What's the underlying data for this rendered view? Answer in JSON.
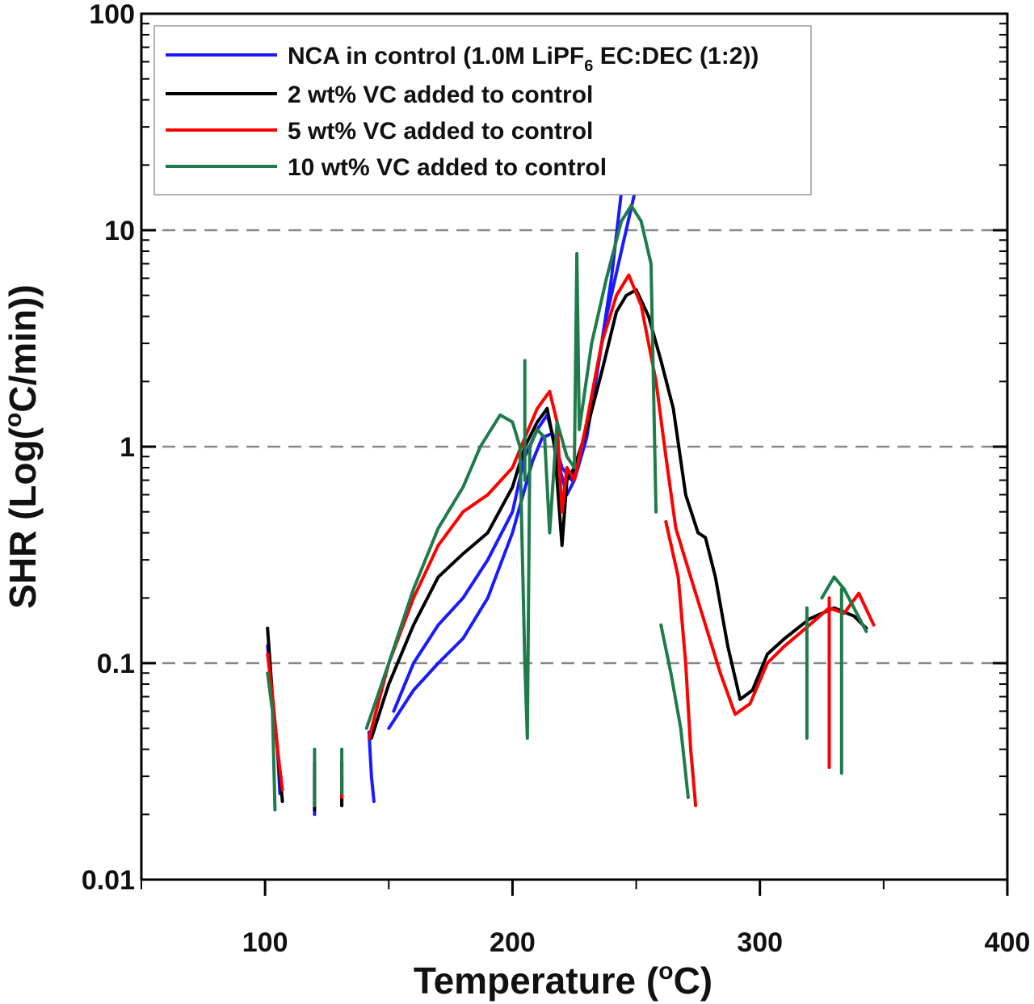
{
  "chart_data": {
    "type": "line",
    "title": "",
    "xlabel": {
      "main": "Temperature (",
      "sup": "o",
      "unit": "C)"
    },
    "ylabel": {
      "main": "SHR (Log(",
      "sup": "o",
      "unit": "C/min))"
    },
    "xlim": [
      50,
      400
    ],
    "ylim": [
      0.01,
      100
    ],
    "yscale": "log",
    "xticks": [
      100,
      200,
      300,
      400
    ],
    "xtick_labels": [
      "100",
      "200",
      "300",
      "400"
    ],
    "yticks": [
      0.01,
      0.1,
      1,
      10,
      100
    ],
    "ytick_labels": [
      "0.01",
      "0.1",
      "1",
      "10",
      "100"
    ],
    "gridlines_y": [
      0.1,
      1,
      10
    ],
    "legend_position": "top-left",
    "series": [
      {
        "name": "NCA in control (1.0M LiPF6 EC:DEC (1:2))",
        "legend_parts": {
          "before": "NCA in control (1.0M LiPF",
          "sub": "6",
          "after": " EC:DEC (1:2))"
        },
        "color": "#1a1aff",
        "segments": [
          [
            [
              101,
              0.12
            ],
            [
              103,
              0.07
            ],
            [
              105,
              0.04
            ],
            [
              106,
              0.025
            ]
          ],
          [
            [
              120,
              0.035
            ],
            [
              120,
              0.02
            ]
          ],
          [
            [
              131,
              0.035
            ],
            [
              131,
              0.022
            ]
          ],
          [
            [
              142,
              0.048
            ],
            [
              143,
              0.03
            ],
            [
              144,
              0.023
            ]
          ],
          [
            [
              150,
              0.05
            ],
            [
              160,
              0.075
            ],
            [
              170,
              0.1
            ],
            [
              180,
              0.13
            ],
            [
              190,
              0.2
            ],
            [
              200,
              0.4
            ],
            [
              208,
              0.85
            ],
            [
              212,
              1.1
            ],
            [
              216,
              1.15
            ],
            [
              219,
              0.8
            ],
            [
              222,
              0.6
            ],
            [
              225,
              0.7
            ],
            [
              230,
              1.1
            ],
            [
              235,
              2.5
            ],
            [
              240,
              6
            ],
            [
              244,
              15
            ]
          ],
          [
            [
              152,
              0.06
            ],
            [
              160,
              0.1
            ],
            [
              170,
              0.15
            ],
            [
              180,
              0.2
            ],
            [
              190,
              0.3
            ],
            [
              200,
              0.5
            ],
            [
              205,
              0.9
            ],
            [
              210,
              1.2
            ],
            [
              214,
              1.4
            ],
            [
              220,
              0.8
            ],
            [
              224,
              0.7
            ],
            [
              230,
              1.2
            ],
            [
              238,
              4
            ],
            [
              245,
              9
            ],
            [
              250,
              16
            ]
          ]
        ]
      },
      {
        "name": "2 wt% VC added to control",
        "color": "#000000",
        "segments": [
          [
            [
              101,
              0.145
            ],
            [
              103,
              0.07
            ],
            [
              105,
              0.04
            ],
            [
              107,
              0.023
            ]
          ],
          [
            [
              120,
              0.03
            ],
            [
              120,
              0.021
            ]
          ],
          [
            [
              131,
              0.03
            ],
            [
              131,
              0.022
            ]
          ],
          [
            [
              143,
              0.045
            ],
            [
              150,
              0.08
            ],
            [
              160,
              0.15
            ],
            [
              170,
              0.25
            ],
            [
              180,
              0.32
            ],
            [
              190,
              0.4
            ],
            [
              200,
              0.65
            ],
            [
              205,
              1.0
            ],
            [
              210,
              1.3
            ],
            [
              214,
              1.5
            ],
            [
              217,
              1.0
            ],
            [
              220,
              0.35
            ],
            [
              222,
              0.7
            ],
            [
              225,
              0.8
            ],
            [
              230,
              1.2
            ],
            [
              236,
              2.2
            ],
            [
              242,
              4.2
            ],
            [
              246,
              5.0
            ],
            [
              250,
              5.3
            ],
            [
              255,
              4.0
            ],
            [
              260,
              2.5
            ],
            [
              265,
              1.5
            ],
            [
              270,
              0.6
            ],
            [
              275,
              0.4
            ],
            [
              278,
              0.38
            ],
            [
              282,
              0.25
            ],
            [
              287,
              0.12
            ],
            [
              292,
              0.068
            ],
            [
              297,
              0.075
            ],
            [
              303,
              0.11
            ],
            [
              310,
              0.13
            ],
            [
              320,
              0.16
            ],
            [
              330,
              0.18
            ],
            [
              338,
              0.165
            ],
            [
              343,
              0.145
            ]
          ]
        ]
      },
      {
        "name": "5 wt% VC added to control",
        "color": "#ff0000",
        "segments": [
          [
            [
              101,
              0.11
            ],
            [
              103,
              0.07
            ],
            [
              105,
              0.04
            ],
            [
              107,
              0.026
            ]
          ],
          [
            [
              120,
              0.035
            ],
            [
              120,
              0.022
            ]
          ],
          [
            [
              131,
              0.035
            ],
            [
              131,
              0.024
            ]
          ],
          [
            [
              142,
              0.045
            ],
            [
              150,
              0.1
            ],
            [
              160,
              0.2
            ],
            [
              170,
              0.35
            ],
            [
              180,
              0.5
            ],
            [
              190,
              0.6
            ],
            [
              200,
              0.8
            ],
            [
              205,
              1.1
            ],
            [
              210,
              1.5
            ],
            [
              215,
              1.8
            ],
            [
              218,
              1.3
            ],
            [
              220,
              0.5
            ],
            [
              222,
              0.8
            ],
            [
              225,
              0.7
            ],
            [
              230,
              1.3
            ],
            [
              236,
              3.0
            ],
            [
              242,
              5.0
            ],
            [
              247,
              6.2
            ],
            [
              252,
              4.5
            ],
            [
              258,
              2.0
            ],
            [
              262,
              0.9
            ],
            [
              266,
              0.42
            ],
            [
              272,
              0.25
            ],
            [
              278,
              0.15
            ],
            [
              284,
              0.09
            ],
            [
              290,
              0.058
            ],
            [
              296,
              0.065
            ],
            [
              303,
              0.1
            ],
            [
              310,
              0.12
            ],
            [
              320,
              0.15
            ],
            [
              328,
              0.18
            ],
            [
              334,
              0.17
            ],
            [
              340,
              0.21
            ],
            [
              346,
              0.15
            ]
          ],
          [
            [
              262,
              0.45
            ],
            [
              267,
              0.25
            ],
            [
              270,
              0.1
            ],
            [
              272,
              0.04
            ],
            [
              274,
              0.022
            ]
          ],
          [
            [
              328,
              0.2
            ],
            [
              328,
              0.033
            ]
          ]
        ]
      },
      {
        "name": "10 wt% VC added to control",
        "color": "#1e7b4a",
        "segments": [
          [
            [
              101,
              0.09
            ],
            [
              103,
              0.06
            ],
            [
              104,
              0.021
            ]
          ],
          [
            [
              120,
              0.04
            ],
            [
              120,
              0.022
            ]
          ],
          [
            [
              131,
              0.04
            ],
            [
              131,
              0.025
            ]
          ],
          [
            [
              141,
              0.05
            ],
            [
              150,
              0.1
            ],
            [
              160,
              0.22
            ],
            [
              170,
              0.42
            ],
            [
              180,
              0.65
            ],
            [
              187,
              1.0
            ],
            [
              195,
              1.4
            ],
            [
              200,
              1.3
            ],
            [
              203,
              1.0
            ],
            [
              205,
              0.1
            ],
            [
              206,
              0.045
            ],
            [
              207,
              1.0
            ],
            [
              210,
              1.2
            ],
            [
              213,
              1.1
            ],
            [
              215,
              0.4
            ],
            [
              218,
              1.3
            ],
            [
              222,
              0.9
            ],
            [
              225,
              0.8
            ],
            [
              226,
              7.8
            ],
            [
              227,
              1.2
            ],
            [
              232,
              3.0
            ],
            [
              238,
              6.0
            ],
            [
              244,
              11
            ],
            [
              248,
              13
            ],
            [
              252,
              11
            ],
            [
              256,
              7
            ],
            [
              258,
              0.5
            ]
          ],
          [
            [
              205,
              2.5
            ],
            [
              205,
              0.7
            ]
          ],
          [
            [
              260,
              0.15
            ],
            [
              264,
              0.09
            ],
            [
              268,
              0.05
            ],
            [
              271,
              0.024
            ]
          ],
          [
            [
              319,
              0.18
            ],
            [
              319,
              0.045
            ]
          ],
          [
            [
              325,
              0.2
            ],
            [
              330,
              0.25
            ],
            [
              334,
              0.22
            ],
            [
              338,
              0.18
            ],
            [
              343,
              0.14
            ]
          ],
          [
            [
              333,
              0.22
            ],
            [
              333,
              0.031
            ]
          ]
        ]
      }
    ]
  }
}
